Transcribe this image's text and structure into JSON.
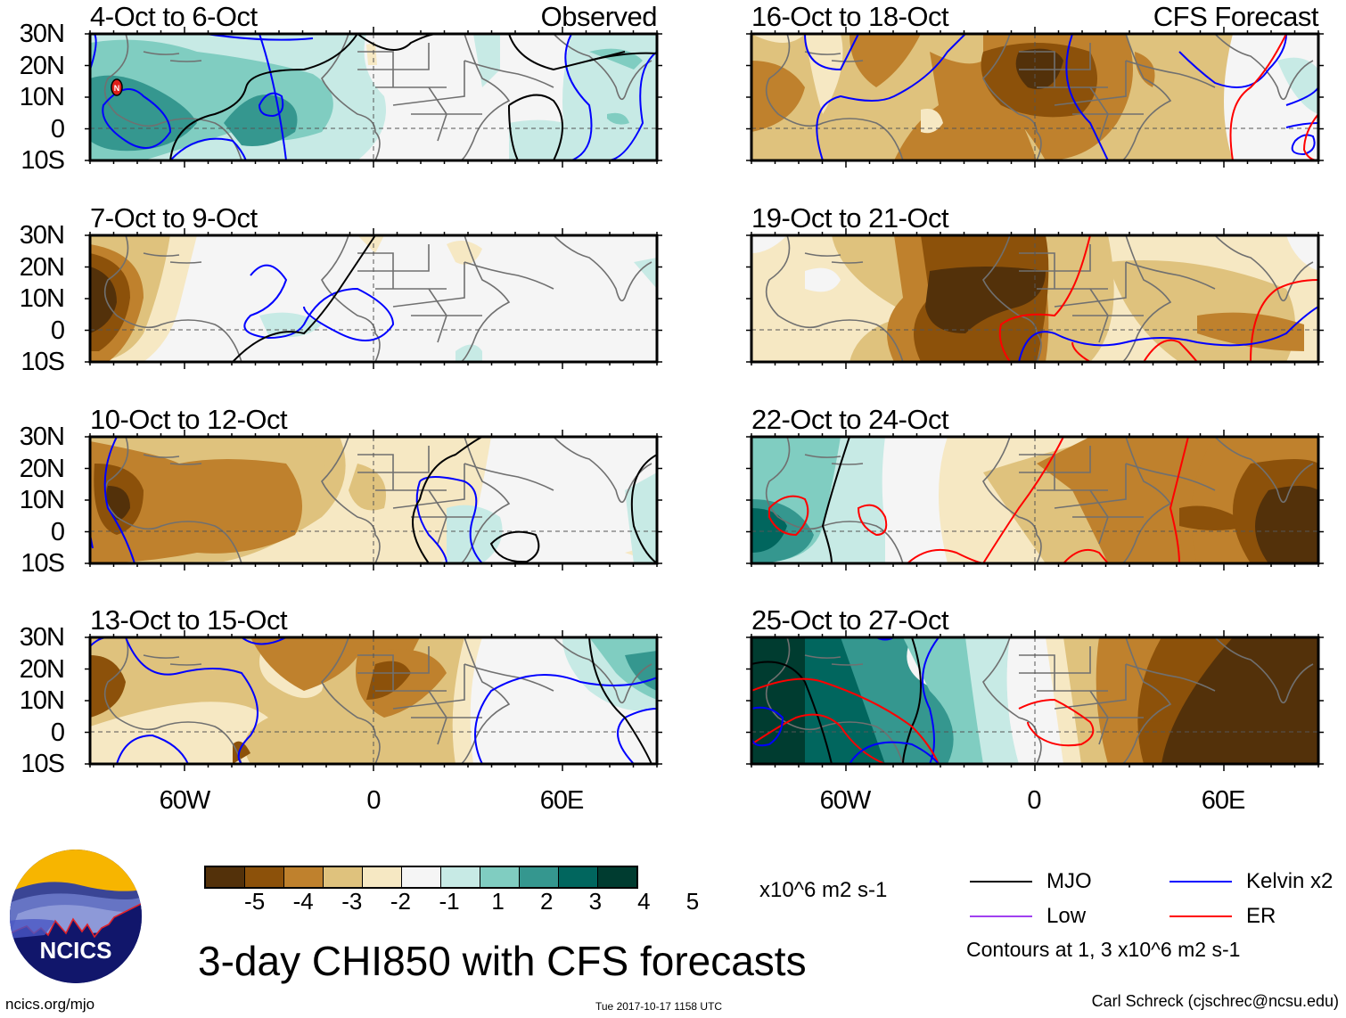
{
  "chart_data": {
    "type": "heatmap",
    "title": "3-day CHI850 with CFS forecasts",
    "variable": "CHI850 (850-hPa velocity potential anomaly)",
    "units": "x10^6 m2 s-1",
    "xaxis": {
      "ticks": [
        "60W",
        "0",
        "60E"
      ],
      "range": [
        "90W",
        "90E"
      ]
    },
    "yaxis": {
      "ticks": [
        "30N",
        "20N",
        "10N",
        "0",
        "10S"
      ],
      "range": [
        "10S",
        "30N"
      ]
    },
    "colorbar": {
      "levels": [
        "-5",
        "-4",
        "-3",
        "-2",
        "-1",
        "1",
        "2",
        "3",
        "4",
        "5"
      ],
      "colors": [
        "#53310a",
        "#8c510a",
        "#bf812d",
        "#dfc27d",
        "#f6e8c3",
        "#f5f5f5",
        "#c7eae5",
        "#80cdc1",
        "#35978f",
        "#01665e",
        "#003c30"
      ]
    },
    "legend": [
      {
        "name": "MJO",
        "color": "#000000"
      },
      {
        "name": "Kelvin x2",
        "color": "#0000ff"
      },
      {
        "name": "Low",
        "color": "#a040f0"
      },
      {
        "name": "ER",
        "color": "#ff0000"
      }
    ],
    "contour_note": "Contours at 1, 3 x10^6 m2 s-1",
    "panels": [
      {
        "id": "p1",
        "period": "4-Oct to 6-Oct",
        "type": "Observed",
        "summary": "positive (green) anomalies over the Caribbean/tropical Atlantic up to +3; near neutral over Africa; weak positive over Indian Ocean; tropical storm symbol near Central America"
      },
      {
        "id": "p2",
        "period": "7-Oct to 9-Oct",
        "type": "Observed",
        "summary": "strong negative (-5) centered over Central America/eastern Pacific; neutral elsewhere"
      },
      {
        "id": "p3",
        "period": "10-Oct to 12-Oct",
        "type": "Observed",
        "summary": "negative -3 over tropical Atlantic; -5 over Central America; weak positive over East Africa"
      },
      {
        "id": "p4",
        "period": "13-Oct to 15-Oct",
        "type": "Observed",
        "summary": "negative -2 to -4 over Atlantic and West Africa; positive +3 over Bay of Bengal"
      },
      {
        "id": "p5",
        "period": "16-Oct to 18-Oct",
        "type": "CFS Forecast",
        "summary": "negative -3 to -5 over Atlantic and Africa, strongest over Sahel; near neutral/positive over Indian Ocean"
      },
      {
        "id": "p6",
        "period": "19-Oct to 21-Oct",
        "type": "CFS Forecast",
        "summary": "strong negative -5 over West/Central Africa; weak negative over Indian Ocean"
      },
      {
        "id": "p7",
        "period": "22-Oct to 24-Oct",
        "type": "CFS Forecast",
        "summary": "positive +4 over northern South America; negative -5 over Arabian Sea/Indian Ocean"
      },
      {
        "id": "p8",
        "period": "25-Oct to 27-Oct",
        "type": "CFS Forecast",
        "summary": "positive +5 over Caribbean/eastern Pacific; negative -5 over Indian Ocean"
      }
    ]
  },
  "panels": [
    {
      "title": "4-Oct to 6-Oct",
      "right_label": "Observed"
    },
    {
      "title": "7-Oct to 9-Oct",
      "right_label": ""
    },
    {
      "title": "10-Oct to 12-Oct",
      "right_label": ""
    },
    {
      "title": "13-Oct to 15-Oct",
      "right_label": ""
    },
    {
      "title": "16-Oct to 18-Oct",
      "right_label": "CFS Forecast"
    },
    {
      "title": "19-Oct to 21-Oct",
      "right_label": ""
    },
    {
      "title": "22-Oct to 24-Oct",
      "right_label": ""
    },
    {
      "title": "25-Oct to 27-Oct",
      "right_label": ""
    }
  ],
  "axes": {
    "lat_labels": [
      "30N",
      "20N",
      "10N",
      "0",
      "10S"
    ],
    "lon_labels": [
      "60W",
      "0",
      "60E"
    ]
  },
  "colorbar": {
    "ticks": [
      "-5",
      "-4",
      "-3",
      "-2",
      "-1",
      "1",
      "2",
      "3",
      "4",
      "5"
    ],
    "units": "x10^6 m2 s-1"
  },
  "legend": {
    "mjo": "MJO",
    "kelvin": "Kelvin x2",
    "low": "Low",
    "er": "ER",
    "contour_note": "Contours at 1, 3 x10^6 m2 s-1"
  },
  "title": "3-day CHI850 with CFS forecasts",
  "footer": {
    "url": "ncics.org/mjo",
    "timestamp": "Tue 2017-10-17 1158 UTC",
    "author": "Carl Schreck (cjschrec@ncsu.edu)"
  },
  "logo": {
    "text": "NCICS"
  }
}
